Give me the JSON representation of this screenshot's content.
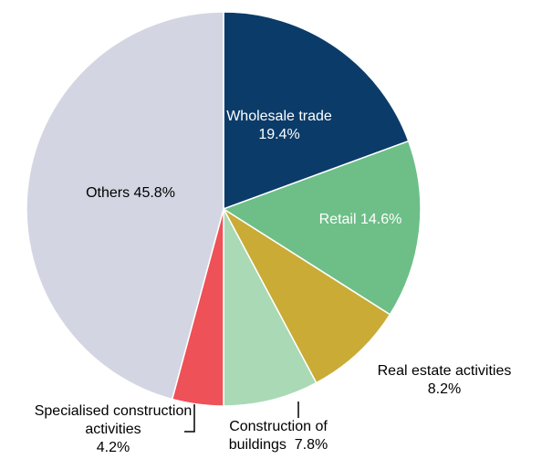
{
  "chart_data": {
    "type": "pie",
    "categories": [
      "Wholesale trade",
      "Retail",
      "Real estate activities",
      "Construction of buildings",
      "Specialised construction activities",
      "Others"
    ],
    "values": [
      19.4,
      14.6,
      8.2,
      7.8,
      4.2,
      45.8
    ],
    "value_labels": [
      "19.4%",
      "14.6%",
      "8.2%",
      "7.8%",
      "4.2%",
      "45.8%"
    ],
    "colors": [
      "#0b3c69",
      "#6dbf87",
      "#c9ab36",
      "#a9d9b5",
      "#ee5157",
      "#d3d6e2"
    ]
  }
}
